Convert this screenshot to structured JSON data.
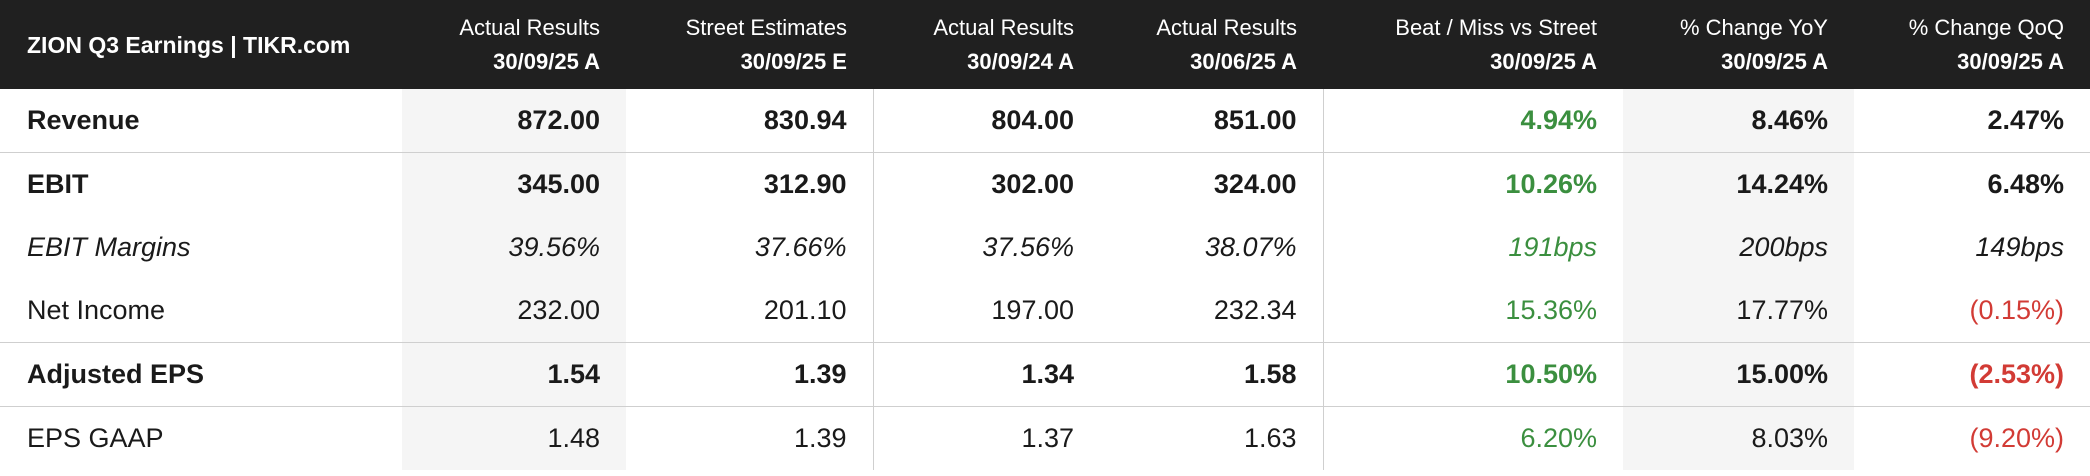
{
  "title": "ZION Q3 Earnings | TIKR.com",
  "columns": [
    {
      "label": "Actual Results",
      "date": "30/09/25 A"
    },
    {
      "label": "Street Estimates",
      "date": "30/09/25 E"
    },
    {
      "label": "Actual Results",
      "date": "30/09/24 A"
    },
    {
      "label": "Actual Results",
      "date": "30/06/25 A"
    },
    {
      "label": "Beat / Miss vs Street",
      "date": "30/09/25 A"
    },
    {
      "label": "% Change YoY",
      "date": "30/09/25 A"
    },
    {
      "label": "% Change QoQ",
      "date": "30/09/25 A"
    }
  ],
  "rows": [
    {
      "name": "Revenue",
      "values": [
        "872.00",
        "830.94",
        "804.00",
        "851.00",
        "4.94%",
        "8.46%",
        "2.47%"
      ]
    },
    {
      "name": "EBIT",
      "values": [
        "345.00",
        "312.90",
        "302.00",
        "324.00",
        "10.26%",
        "14.24%",
        "6.48%"
      ]
    },
    {
      "name": "EBIT Margins",
      "values": [
        "39.56%",
        "37.66%",
        "37.56%",
        "38.07%",
        "191bps",
        "200bps",
        "149bps"
      ]
    },
    {
      "name": "Net Income",
      "values": [
        "232.00",
        "201.10",
        "197.00",
        "232.34",
        "15.36%",
        "17.77%",
        "(0.15%)"
      ]
    },
    {
      "name": "Adjusted EPS",
      "values": [
        "1.54",
        "1.39",
        "1.34",
        "1.58",
        "10.50%",
        "15.00%",
        "(2.53%)"
      ]
    },
    {
      "name": "EPS GAAP",
      "values": [
        "1.48",
        "1.39",
        "1.37",
        "1.63",
        "6.20%",
        "8.03%",
        "(9.20%)"
      ]
    }
  ],
  "colors": {
    "positive": "#3b8f3f",
    "negative": "#d23b35",
    "header_bg": "#202020"
  }
}
